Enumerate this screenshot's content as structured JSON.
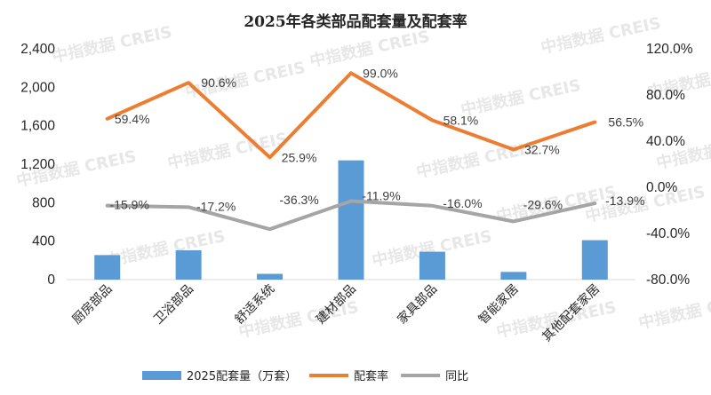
{
  "watermark": "中指数据 CREIS",
  "chart_data": {
    "type": "bar",
    "title": "2025年各类部品配套量及配套率",
    "categories": [
      "厨房部品",
      "卫浴部品",
      "舒适系统",
      "建材部品",
      "家具部品",
      "智能家居",
      "其他配套家居"
    ],
    "series": [
      {
        "name": "2025配套量（万套）",
        "type": "bar",
        "axis": "left",
        "color": "#5b9bd5",
        "values": [
          255,
          305,
          60,
          1240,
          290,
          80,
          410
        ]
      },
      {
        "name": "配套率",
        "type": "line",
        "axis": "right",
        "color": "#ed7d31",
        "values": [
          59.4,
          90.6,
          25.9,
          99.0,
          58.1,
          32.7,
          56.5
        ],
        "labels": [
          "59.4%",
          "90.6%",
          "25.9%",
          "99.0%",
          "58.1%",
          "32.7%",
          "56.5%"
        ]
      },
      {
        "name": "同比",
        "type": "line",
        "axis": "right",
        "color": "#a5a5a5",
        "values": [
          -15.9,
          -17.2,
          -36.3,
          -11.9,
          -16.0,
          -29.6,
          -13.9
        ],
        "labels": [
          "-15.9%",
          "-17.2%",
          "-36.3%",
          "-11.9%",
          "-16.0%",
          "-29.6%",
          "-13.9%"
        ]
      }
    ],
    "y_left": {
      "min": 0,
      "max": 2400,
      "ticks": [
        "0",
        "400",
        "800",
        "1,200",
        "1,600",
        "2,000",
        "2,400"
      ]
    },
    "y_right": {
      "min": -80,
      "max": 120,
      "ticks": [
        "-80.0%",
        "-40.0%",
        "0.0%",
        "40.0%",
        "80.0%",
        "120.0%"
      ]
    },
    "grid": false,
    "legend_position": "bottom"
  }
}
